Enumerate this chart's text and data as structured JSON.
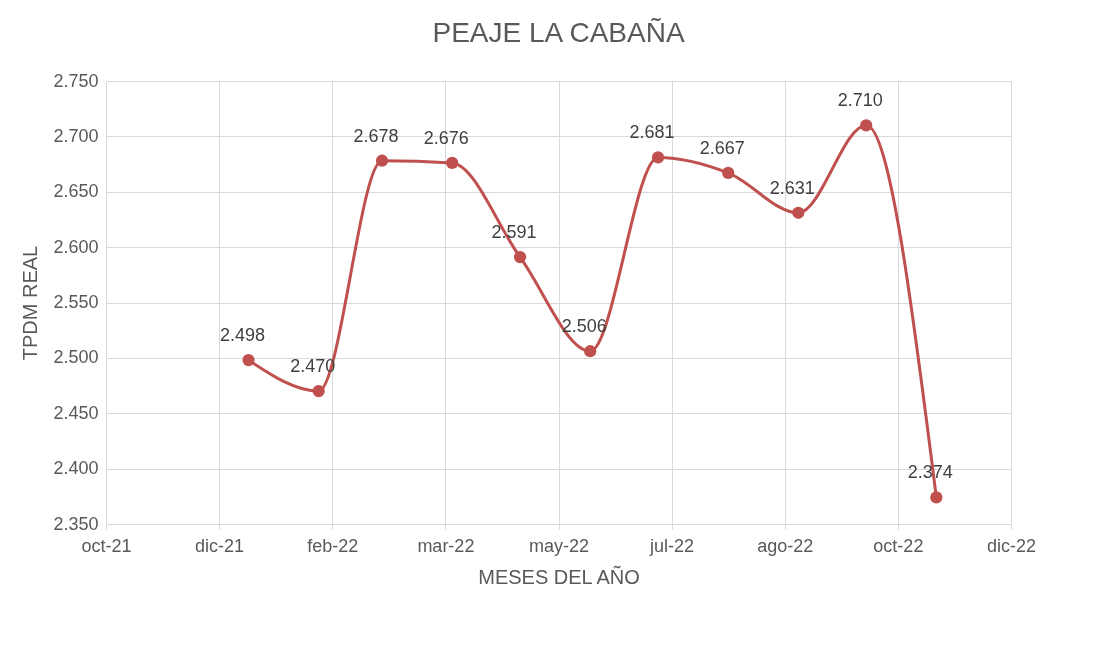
{
  "chart_data": {
    "type": "line",
    "title": "PEAJE LA CABAÑA",
    "xlabel": "MESES DEL AÑO",
    "ylabel": "TPDM REAL",
    "x": [
      "2021-12-31",
      "2022-01-31",
      "2022-02-28",
      "2022-03-31",
      "2022-04-30",
      "2022-05-31",
      "2022-06-30",
      "2022-07-31",
      "2022-08-31",
      "2022-09-30",
      "2022-10-31"
    ],
    "series": [
      {
        "color": "#c0504d",
        "values": [
          2.498,
          2.47,
          2.678,
          2.676,
          2.591,
          2.506,
          2.681,
          2.667,
          2.631,
          2.71,
          2.374
        ],
        "value_labels": [
          "2.498",
          "2.470",
          "2.678",
          "2.676",
          "2.591",
          "2.506",
          "2.681",
          "2.667",
          "2.631",
          "2.710",
          "2.374"
        ]
      }
    ],
    "xlim": [
      "2021-10-29",
      "2022-12-03"
    ],
    "xticks": [
      {
        "value": "2021-10-29",
        "label": "oct-21"
      },
      {
        "value": "2021-12-18",
        "label": "dic-21"
      },
      {
        "value": "2022-02-06",
        "label": "feb-22"
      },
      {
        "value": "2022-03-28",
        "label": "mar-22"
      },
      {
        "value": "2022-05-17",
        "label": "may-22"
      },
      {
        "value": "2022-07-06",
        "label": "jul-22"
      },
      {
        "value": "2022-08-25",
        "label": "ago-22"
      },
      {
        "value": "2022-10-14",
        "label": "oct-22"
      },
      {
        "value": "2022-12-03",
        "label": "dic-22"
      }
    ],
    "ylim": [
      2.35,
      2.75
    ],
    "yticks": [
      {
        "value": 2.35,
        "label": "2.350"
      },
      {
        "value": 2.4,
        "label": "2.400"
      },
      {
        "value": 2.45,
        "label": "2.450"
      },
      {
        "value": 2.5,
        "label": "2.500"
      },
      {
        "value": 2.55,
        "label": "2.550"
      },
      {
        "value": 2.6,
        "label": "2.600"
      },
      {
        "value": 2.65,
        "label": "2.650"
      },
      {
        "value": 2.7,
        "label": "2.700"
      },
      {
        "value": 2.75,
        "label": "2.750"
      }
    ],
    "grid": true,
    "marker": "circle",
    "line_style": "solid"
  }
}
